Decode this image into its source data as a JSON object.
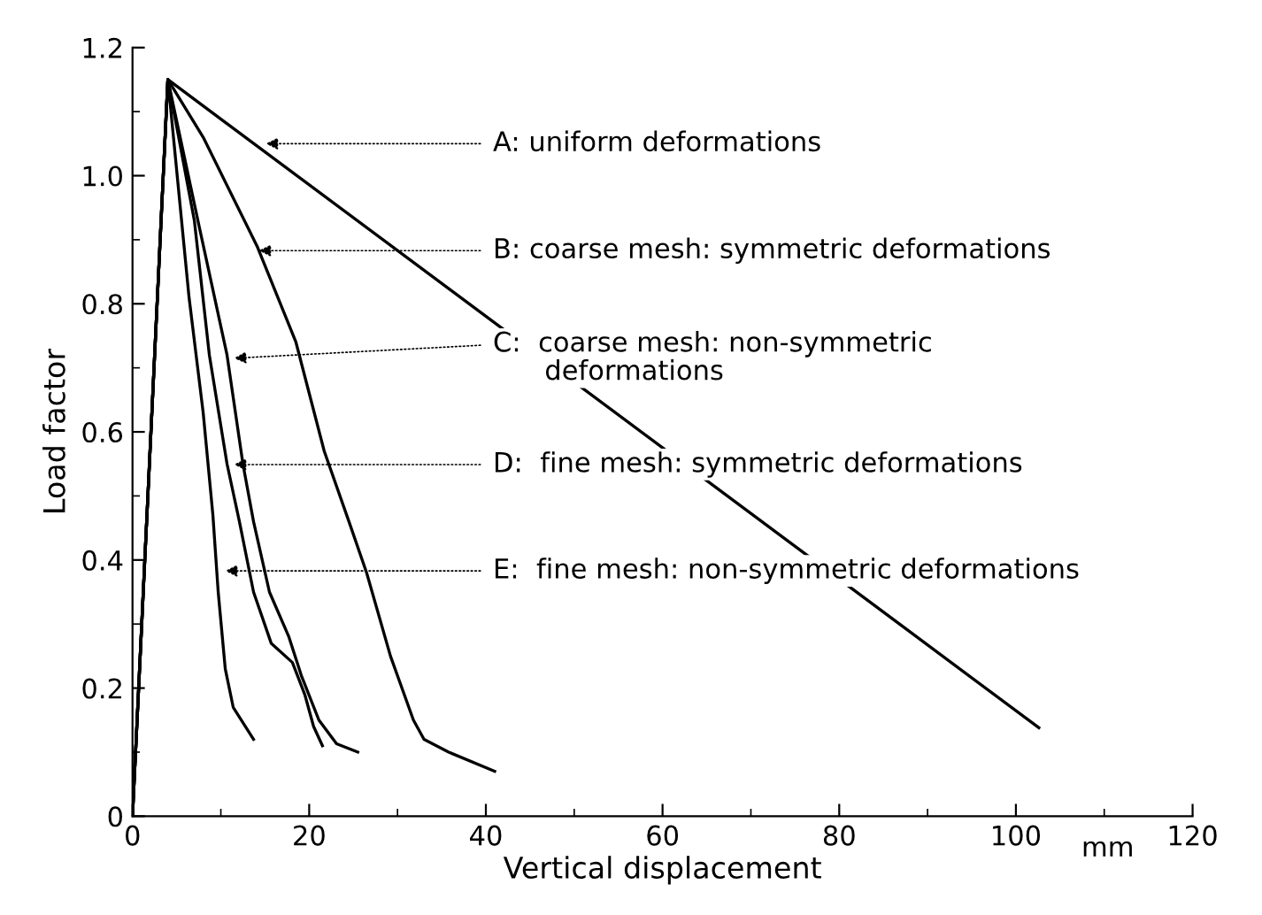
{
  "chart_data": {
    "type": "line",
    "xlabel": "Vertical displacement",
    "ylabel": "Load factor",
    "xlim": [
      0,
      120
    ],
    "ylim": [
      0,
      1.2
    ],
    "xticks": [
      0,
      20,
      40,
      60,
      80,
      100,
      120
    ],
    "yticks": [
      0,
      0.2,
      0.4,
      0.6,
      0.8,
      {
        "value": 1,
        "label": "1.0"
      },
      1.2
    ],
    "grid": false,
    "marker": "none",
    "line_style": "solid",
    "series": [
      {
        "color": "#000000",
        "x": [
          0,
          4,
          102.6
        ],
        "values": [
          0,
          1.15,
          0.138
        ]
      },
      {
        "color": "#000000",
        "x": [
          0,
          4,
          8,
          14.1,
          18.5,
          21.7,
          24.5,
          26.5,
          29.2,
          31.8,
          33,
          35.8,
          41
        ],
        "values": [
          0,
          1.15,
          1.06,
          0.89,
          0.74,
          0.57,
          0.46,
          0.38,
          0.25,
          0.15,
          0.12,
          0.1,
          0.07
        ]
      },
      {
        "color": "#000000",
        "x": [
          0,
          4,
          7.4,
          10.7,
          12.5,
          13.7,
          15.5,
          17.7,
          19.1,
          21.1,
          23.1,
          25.5
        ],
        "values": [
          0,
          1.15,
          0.93,
          0.72,
          0.55,
          0.46,
          0.35,
          0.28,
          0.22,
          0.15,
          0.113,
          0.1
        ]
      },
      {
        "color": "#000000",
        "x": [
          0,
          4,
          7,
          8.7,
          10.7,
          12.1,
          13.7,
          15.7,
          18.1,
          19.5,
          20.5,
          21.5
        ],
        "values": [
          0,
          1.15,
          0.93,
          0.72,
          0.55,
          0.46,
          0.35,
          0.27,
          0.24,
          0.19,
          0.14,
          0.11
        ]
      },
      {
        "color": "#000000",
        "x": [
          0,
          4,
          6.4,
          8,
          9.1,
          9.7,
          10.5,
          11.4,
          13.7
        ],
        "values": [
          0,
          1.15,
          0.81,
          0.63,
          0.47,
          0.35,
          0.23,
          0.17,
          0.12
        ]
      }
    ],
    "annotations": [
      {
        "text": "A: uniform deformations",
        "x": 15.1,
        "y": 1.05
      },
      {
        "text": "B: coarse mesh: symmetric deformations",
        "x": 14.3,
        "y": 0.883
      },
      {
        "text": "C:  coarse mesh: non-symmetric\n      deformations",
        "x": 11.5,
        "y": 0.715
      },
      {
        "text": "D:  fine mesh: symmetric deformations",
        "x": 11.5,
        "y": 0.549
      },
      {
        "text": "E:  fine mesh: non-symmetric deformations",
        "x": 10.5,
        "y": 0.383
      },
      "mm"
    ]
  }
}
